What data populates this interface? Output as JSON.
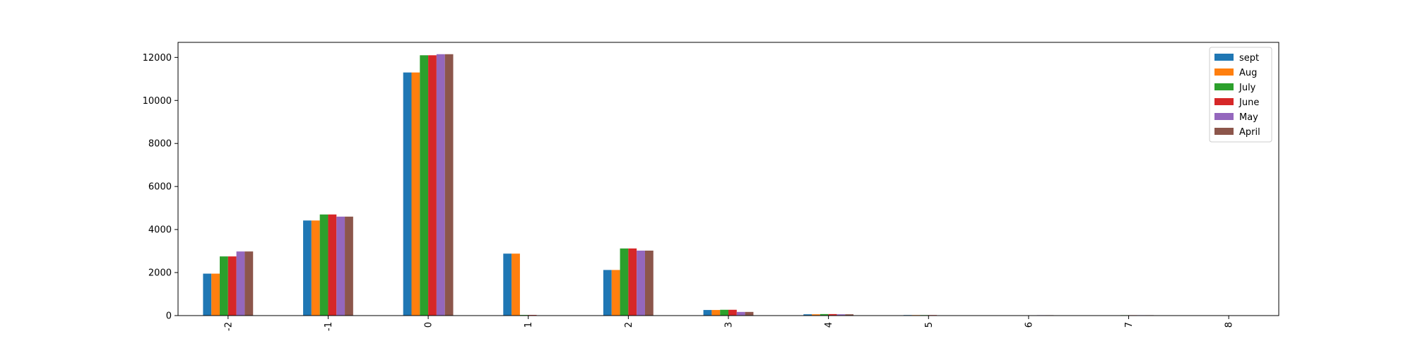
{
  "chart_data": {
    "type": "bar",
    "categories": [
      "-2",
      "-1",
      "0",
      "1",
      "2",
      "3",
      "4",
      "5",
      "6",
      "7",
      "8"
    ],
    "series": [
      {
        "name": "sept",
        "color": "#1f77b4",
        "values": [
          1950,
          4420,
          11300,
          2880,
          2120,
          260,
          60,
          25,
          0,
          0,
          15
        ]
      },
      {
        "name": "Aug",
        "color": "#ff7f0e",
        "values": [
          1950,
          4420,
          11300,
          2880,
          2120,
          260,
          60,
          25,
          0,
          0,
          15
        ]
      },
      {
        "name": "July",
        "color": "#2ca02c",
        "values": [
          2750,
          4700,
          12100,
          30,
          3120,
          270,
          70,
          25,
          0,
          20,
          0
        ]
      },
      {
        "name": "June",
        "color": "#d62728",
        "values": [
          2750,
          4700,
          12100,
          30,
          3120,
          270,
          70,
          25,
          0,
          20,
          0
        ]
      },
      {
        "name": "May",
        "color": "#9467bd",
        "values": [
          2980,
          4600,
          12150,
          0,
          3020,
          170,
          60,
          0,
          20,
          20,
          0
        ]
      },
      {
        "name": "April",
        "color": "#8c564b",
        "values": [
          2980,
          4600,
          12150,
          0,
          3020,
          170,
          60,
          0,
          20,
          20,
          0
        ]
      }
    ],
    "title": "",
    "xlabel": "",
    "ylabel": "",
    "ylim": [
      0,
      12700
    ],
    "yticks": [
      0,
      2000,
      4000,
      6000,
      8000,
      10000,
      12000
    ],
    "xtick_rotation": 90,
    "grid": false,
    "legend_position": "upper-right"
  }
}
